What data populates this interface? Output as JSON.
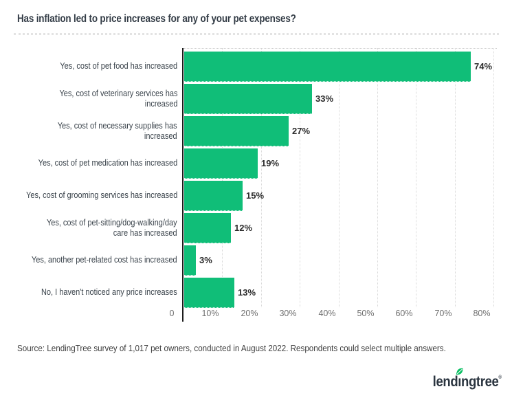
{
  "title": "Has inflation led to price increases for any of your pet expenses?",
  "chart_data": {
    "type": "bar",
    "orientation": "horizontal",
    "title": "Has inflation led to price increases for any of your pet expenses?",
    "categories": [
      "Yes, cost of pet food has increased",
      "Yes, cost of veterinary services has increased",
      "Yes, cost of necessary supplies has increased",
      "Yes, cost of pet medication has increased",
      "Yes, cost of grooming services has increased",
      "Yes, cost of pet-sitting/dog-walking/day care has increased",
      "Yes, another pet-related cost has increased",
      "No, I haven't noticed any price increases"
    ],
    "label_lines": [
      [
        "Yes, cost of pet food has increased"
      ],
      [
        "Yes, cost of veterinary services has",
        "increased"
      ],
      [
        "Yes, cost of necessary supplies has",
        "increased"
      ],
      [
        "Yes, cost of pet medication has increased"
      ],
      [
        "Yes, cost of grooming services has increased"
      ],
      [
        "Yes, cost of pet-sitting/dog-walking/day",
        "care has increased"
      ],
      [
        "Yes, another pet-related cost has increased"
      ],
      [
        "No, I haven't noticed any price increases"
      ]
    ],
    "values": [
      74,
      33,
      27,
      19,
      15,
      12,
      3,
      13
    ],
    "value_labels": [
      "74%",
      "33%",
      "27%",
      "19%",
      "15%",
      "12%",
      "3%",
      "13%"
    ],
    "xlabel": "",
    "ylabel": "",
    "xlim": [
      0,
      80
    ],
    "x_ticks": [
      "0",
      "10%",
      "20%",
      "30%",
      "40%",
      "50%",
      "60%",
      "70%",
      "80%"
    ],
    "grid": "vertical",
    "legend": "none",
    "bar_color": "#10BE78"
  },
  "source_note": "Source: LendingTree survey of 1,017 pet owners, conducted in August 2022. Respondents could select multiple answers.",
  "logo": {
    "text": "lendingtree",
    "registered_mark": "®"
  },
  "colors": {
    "bar_green": "#10BE78",
    "leaf_green": "#0ABF63",
    "title_text": "#333C46",
    "axis_line": "#1C1C1C",
    "gridline": "#D9D9D9",
    "tick_text": "#6E6E6E",
    "label_text": "#3B444C",
    "value_text": "#2B2B2B",
    "source_text": "#3F3F3F",
    "logo_text": "#2B3540",
    "divider": "#E3E3E3"
  }
}
